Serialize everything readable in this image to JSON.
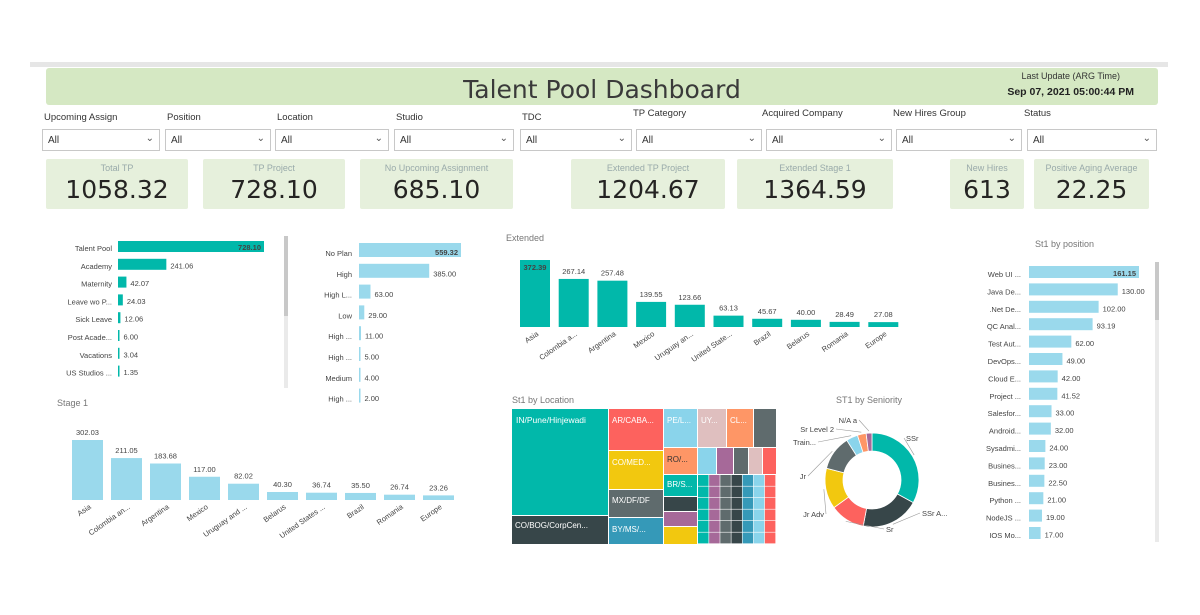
{
  "header": {
    "title": "Talent Pool Dashboard",
    "last_update_label": "Last Update (ARG Time)",
    "last_update_value": "Sep 07, 2021 05:00:44 PM"
  },
  "slicers": [
    {
      "label": "Upcoming Assign",
      "value": "All"
    },
    {
      "label": "Position",
      "value": "All"
    },
    {
      "label": "Location",
      "value": "All"
    },
    {
      "label": "Studio",
      "value": "All"
    },
    {
      "label": "TDC",
      "value": "All"
    },
    {
      "label": "TP Category",
      "value": "All"
    },
    {
      "label": "Acquired Company",
      "value": "All"
    },
    {
      "label": "New Hires Group",
      "value": "All"
    },
    {
      "label": "Status",
      "value": "All"
    }
  ],
  "kpis": [
    {
      "label": "Total TP",
      "value": "1058.32"
    },
    {
      "label": "TP Project",
      "value": "728.10"
    },
    {
      "label": "No Upcoming Assignment",
      "value": "685.10"
    },
    {
      "label": "Extended TP Project",
      "value": "1204.67"
    },
    {
      "label": "Extended Stage 1",
      "value": "1364.59"
    },
    {
      "label": "New Hires",
      "value": "613"
    },
    {
      "label": "Positive Aging Average",
      "value": "22.25"
    }
  ],
  "colors": {
    "teal": "#01b8aa",
    "light_blue": "#9ad9ec",
    "header_bg": "#d5e8c3",
    "kpi_bg": "#e6f0dc"
  },
  "icons": {
    "dropdown": "chevron-down-icon"
  },
  "chart_data": [
    {
      "id": "category",
      "type": "bar",
      "orientation": "horizontal",
      "categories": [
        "Talent Pool",
        "Academy",
        "Maternity",
        "Leave wo P...",
        "Sick Leave",
        "Post Acade...",
        "Vacations",
        "US Studios ..."
      ],
      "values": [
        728.1,
        241.06,
        42.07,
        24.03,
        12.06,
        6.0,
        3.04,
        1.35
      ],
      "labels": [
        "728.10",
        "241.06",
        "42.07",
        "24.03",
        "12.06",
        "6.00",
        "3.04",
        "1.35"
      ]
    },
    {
      "id": "plan",
      "type": "bar",
      "orientation": "horizontal",
      "categories": [
        "No Plan",
        "High",
        "High L...",
        "Low",
        "High ...",
        "High ...",
        "Medium",
        "High ..."
      ],
      "values": [
        559.32,
        385.0,
        63.0,
        29.0,
        11.0,
        5.0,
        4.0,
        2.0
      ],
      "labels": [
        "559.32",
        "385.00",
        "63.00",
        "29.00",
        "11.00",
        "5.00",
        "4.00",
        "2.00"
      ]
    },
    {
      "id": "extended",
      "type": "bar",
      "title": "Extended",
      "categories": [
        "Asia",
        "Colombia a...",
        "Argentina",
        "Mexico",
        "Uruguay an...",
        "United State...",
        "Brazil",
        "Belarus",
        "Romania",
        "Europe"
      ],
      "values": [
        372.39,
        267.14,
        257.48,
        139.55,
        123.66,
        63.13,
        45.67,
        40.0,
        28.49,
        27.08
      ],
      "labels": [
        "372.39",
        "267.14",
        "257.48",
        "139.55",
        "123.66",
        "63.13",
        "45.67",
        "40.00",
        "28.49",
        "27.08"
      ]
    },
    {
      "id": "stage1",
      "type": "bar",
      "title": "Stage 1",
      "categories": [
        "Asia",
        "Colombia an...",
        "Argentina",
        "Mexico",
        "Uruguay and ...",
        "Belarus",
        "United States ...",
        "Brazil",
        "Romania",
        "Europe"
      ],
      "values": [
        302.03,
        211.05,
        183.68,
        117.0,
        82.02,
        40.3,
        36.74,
        35.5,
        26.74,
        23.26
      ],
      "labels": [
        "302.03",
        "211.05",
        "183.68",
        "117.00",
        "82.02",
        "40.30",
        "36.74",
        "35.50",
        "26.74",
        "23.26"
      ]
    },
    {
      "id": "location",
      "type": "treemap",
      "title": "St1  by Location",
      "labels": [
        "IN/Pune/Hinjewadi",
        "CO/BOG/CorpCen...",
        "AR/CABA...",
        "CO/MED...",
        "MX/DF/DF",
        "BY/MS/...",
        "PE/L...",
        "RO/...",
        "BR/S...",
        "UY...",
        "CL..."
      ]
    },
    {
      "id": "seniority",
      "type": "pie",
      "title": "ST1 by Seniority",
      "categories": [
        "SSr",
        "SSr A...",
        "Sr",
        "Jr Adv",
        "Jr",
        "Train...",
        "Sr Level 2",
        "N/A a"
      ],
      "values": [
        33,
        20,
        12,
        14,
        12,
        4,
        3,
        2
      ]
    },
    {
      "id": "position",
      "type": "bar",
      "orientation": "horizontal",
      "title": "St1 by position",
      "categories": [
        "Web UI ...",
        "Java De...",
        ".Net De...",
        "QC Anal...",
        "Test Aut...",
        "DevOps...",
        "Cloud E...",
        "Project ...",
        "Salesfor...",
        "Android...",
        "Sysadmi...",
        "Busines...",
        "Busines...",
        "Python ...",
        "NodeJS ...",
        "IOS Mo..."
      ],
      "values": [
        161.15,
        130.0,
        102.0,
        93.19,
        62.0,
        49.0,
        42.0,
        41.52,
        33.0,
        32.0,
        24.0,
        23.0,
        22.5,
        21.0,
        19.0,
        17.0
      ],
      "labels": [
        "161.15",
        "130.00",
        "102.00",
        "93.19",
        "62.00",
        "49.00",
        "42.00",
        "41.52",
        "33.00",
        "32.00",
        "24.00",
        "23.00",
        "22.50",
        "21.00",
        "19.00",
        "17.00"
      ]
    }
  ]
}
